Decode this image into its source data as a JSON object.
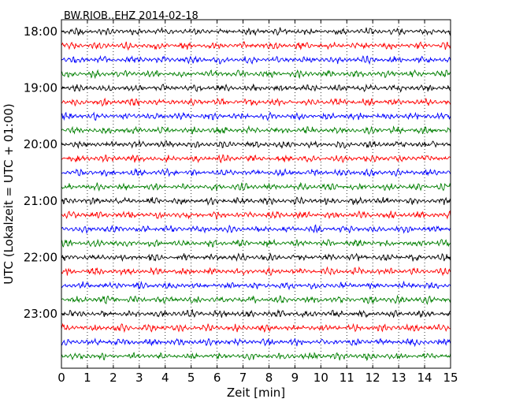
{
  "chart_data": {
    "type": "line",
    "title": "BW.RJOB..EHZ 2014-02-18",
    "xlabel": "Zeit  [min]",
    "ylabel": "UTC (Lokalzeit = UTC + 01:00)",
    "xlim": [
      0,
      15
    ],
    "x_ticks": [
      "0",
      "1",
      "2",
      "3",
      "4",
      "5",
      "6",
      "7",
      "8",
      "9",
      "10",
      "11",
      "12",
      "13",
      "14",
      "15"
    ],
    "y_ticks": [
      "18:00",
      "19:00",
      "20:00",
      "21:00",
      "22:00",
      "23:00"
    ],
    "grid": "vertical dotted",
    "trace_interval_minutes": 15,
    "start_time": "18:00",
    "trace_count": 24,
    "trace_colors": [
      "#000000",
      "#ff0000",
      "#0000ff",
      "#007f00"
    ]
  }
}
